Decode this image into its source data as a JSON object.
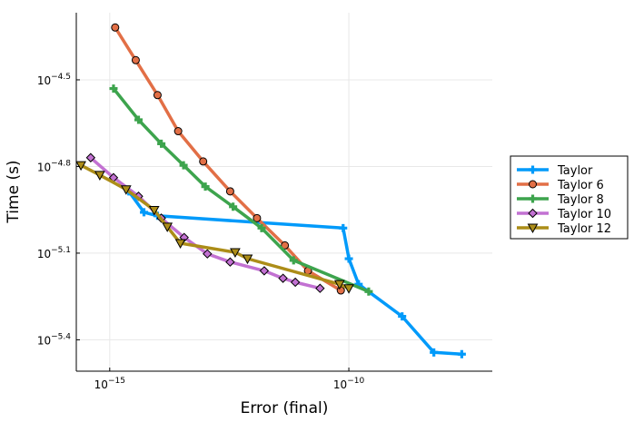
{
  "chart_data": {
    "type": "line",
    "xlabel": "Error (final)",
    "ylabel": "Time (s)",
    "x_scale": "log10",
    "y_scale": "log10",
    "grid": true,
    "legend_position": "right",
    "x_ticks": [
      {
        "value": 1e-15,
        "base": "10",
        "exp": "−15"
      },
      {
        "value": 1e-10,
        "base": "10",
        "exp": "−10"
      }
    ],
    "y_ticks": [
      {
        "value": 3.1623e-05,
        "base": "10",
        "exp": "−4.5"
      },
      {
        "value": 1.5849e-05,
        "base": "10",
        "exp": "−4.8"
      },
      {
        "value": 7.9433e-06,
        "base": "10",
        "exp": "−5.1"
      },
      {
        "value": 3.9811e-06,
        "base": "10",
        "exp": "−5.4"
      }
    ],
    "xlim": [
      2e-16,
      1e-07
    ],
    "ylim": [
      3.1e-06,
      5.4e-05
    ],
    "series": [
      {
        "name": "Taylor",
        "color": "#009AFA",
        "marker": "cross",
        "x": [
          2.5e-15,
          5.2e-15,
          1e-14,
          7.6e-11,
          1e-10,
          1.6e-10,
          1.3e-09,
          6e-09,
          2.3e-08
        ],
        "y": [
          1.3e-05,
          1.1e-05,
          1.07e-05,
          9.7e-06,
          7.6e-06,
          6.2e-06,
          4.8e-06,
          3.6e-06,
          3.55e-06
        ]
      },
      {
        "name": "Taylor 6",
        "color": "#E26F46",
        "marker": "circle",
        "x": [
          1.3e-15,
          3.5e-15,
          1e-14,
          2.7e-14,
          9e-14,
          3.3e-13,
          1.2e-12,
          4.6e-12,
          1.4e-11,
          6.8e-11
        ],
        "y": [
          4.8e-05,
          3.7e-05,
          2.8e-05,
          2.1e-05,
          1.65e-05,
          1.3e-05,
          1.05e-05,
          8.45e-06,
          6.9e-06,
          5.9e-06
        ]
      },
      {
        "name": "Taylor 8",
        "color": "#3DA44D",
        "marker": "cross",
        "x": [
          1.2e-15,
          4e-15,
          1.2e-14,
          3.5e-14,
          1e-13,
          3.8e-13,
          1.5e-12,
          7e-12,
          2.6e-10
        ],
        "y": [
          2.95e-05,
          2.3e-05,
          1.9e-05,
          1.6e-05,
          1.35e-05,
          1.15e-05,
          9.7e-06,
          7.5e-06,
          5.85e-06
        ]
      },
      {
        "name": "Taylor 10",
        "color": "#C271D2",
        "marker": "diamond",
        "x": [
          4e-16,
          1.2e-15,
          4e-15,
          1.2e-14,
          3.6e-14,
          1.1e-13,
          3.3e-13,
          1.7e-12,
          4.2e-12,
          7.6e-12,
          2.5e-11
        ],
        "y": [
          1.7e-05,
          1.45e-05,
          1.25e-05,
          1.05e-05,
          9e-06,
          7.9e-06,
          7.4e-06,
          6.9e-06,
          6.5e-06,
          6.3e-06,
          6e-06
        ]
      },
      {
        "name": "Taylor 12",
        "color": "#AC8D18",
        "marker": "triangle",
        "x": [
          2.5e-16,
          6.2e-16,
          2.2e-15,
          8.5e-15,
          1.6e-14,
          3e-14,
          4.2e-13,
          7.6e-13,
          6.4e-11,
          1e-10
        ],
        "y": [
          1.6e-05,
          1.48e-05,
          1.32e-05,
          1.12e-05,
          9.8e-06,
          8.6e-06,
          8e-06,
          7.6e-06,
          6.2e-06,
          6e-06
        ]
      }
    ]
  }
}
